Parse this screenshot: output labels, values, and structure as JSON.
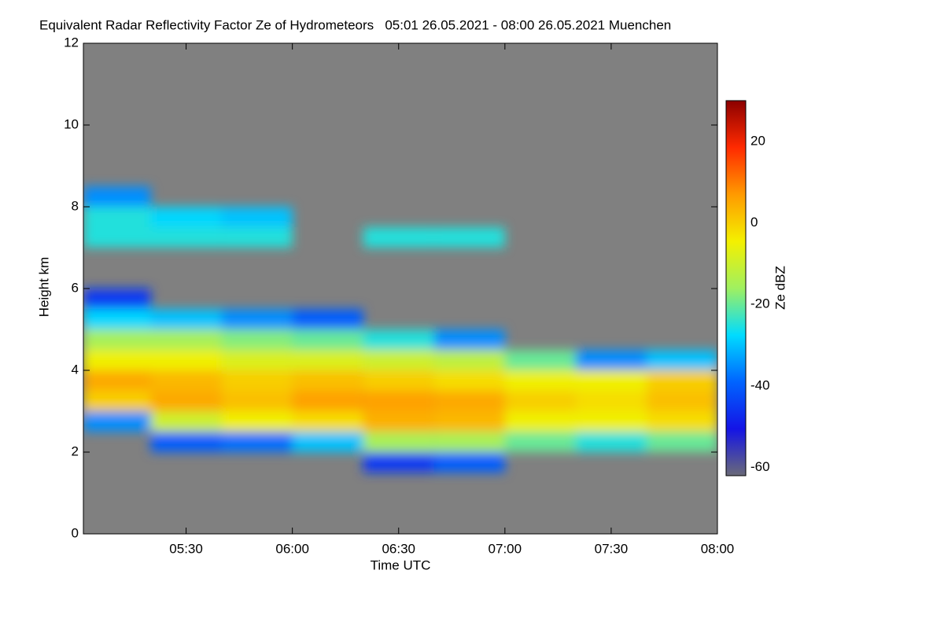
{
  "chart_data": {
    "type": "heatmap",
    "title": "Equivalent Radar Reflectivity Factor Ze of Hydrometeors   05:01 26.05.2021 - 08:00 26.05.2021 Muenchen",
    "xlabel": "Time UTC",
    "ylabel": "Height km",
    "zlabel": "Ze dBZ",
    "xlim": [
      5.0167,
      8.0
    ],
    "xticks": [
      {
        "value": 5.5,
        "label": "05:30"
      },
      {
        "value": 6.0,
        "label": "06:00"
      },
      {
        "value": 6.5,
        "label": "06:30"
      },
      {
        "value": 7.0,
        "label": "07:00"
      },
      {
        "value": 7.5,
        "label": "07:30"
      },
      {
        "value": 8.0,
        "label": "08:00"
      }
    ],
    "ylim": [
      0,
      12
    ],
    "yticks": [
      0,
      2,
      4,
      6,
      8,
      10,
      12
    ],
    "zlim": [
      -62,
      30
    ],
    "zticks": [
      -60,
      -40,
      -20,
      0,
      20
    ],
    "colormap": [
      "#6a6a78",
      "#1414e6",
      "#0064ff",
      "#00dcff",
      "#a0f060",
      "#f4f000",
      "#ff9a00",
      "#ff2a00",
      "#8c0000"
    ],
    "nodata_color": "#808080",
    "xbins": [
      5.0167,
      5.3333,
      5.6667,
      6.0,
      6.3333,
      6.6667,
      7.0,
      7.3333,
      7.6667,
      8.0
    ],
    "ybins": [
      1.5,
      2.0,
      2.5,
      3.0,
      3.5,
      4.0,
      4.5,
      5.0,
      5.5,
      6.0,
      6.5,
      7.0,
      7.5,
      8.0,
      8.5
    ],
    "z": [
      [
        null,
        null,
        null,
        null,
        -45,
        -40,
        null,
        null,
        null
      ],
      [
        null,
        -40,
        -38,
        -30,
        -15,
        -15,
        -20,
        -25,
        -20
      ],
      [
        -35,
        -10,
        -5,
        -2,
        4,
        3,
        -5,
        -5,
        -2
      ],
      [
        0,
        5,
        2,
        6,
        6,
        5,
        0,
        -2,
        2
      ],
      [
        5,
        3,
        0,
        2,
        0,
        -2,
        -5,
        -5,
        0
      ],
      [
        -5,
        -5,
        -8,
        -8,
        -10,
        -12,
        -20,
        -35,
        -30
      ],
      [
        -15,
        -15,
        -18,
        -20,
        -25,
        -35,
        null,
        null,
        null
      ],
      [
        -28,
        -30,
        -35,
        -40,
        null,
        null,
        null,
        null,
        null
      ],
      [
        -45,
        null,
        null,
        null,
        null,
        null,
        null,
        null,
        null
      ],
      [
        null,
        null,
        null,
        null,
        null,
        null,
        null,
        null,
        null
      ],
      [
        null,
        null,
        null,
        null,
        null,
        null,
        null,
        null,
        null
      ],
      [
        -25,
        -25,
        -25,
        null,
        -25,
        -25,
        null,
        null,
        null
      ],
      [
        -25,
        -28,
        -30,
        null,
        null,
        null,
        null,
        null,
        null
      ],
      [
        -35,
        null,
        null,
        null,
        null,
        null,
        null,
        null,
        null
      ]
    ]
  }
}
